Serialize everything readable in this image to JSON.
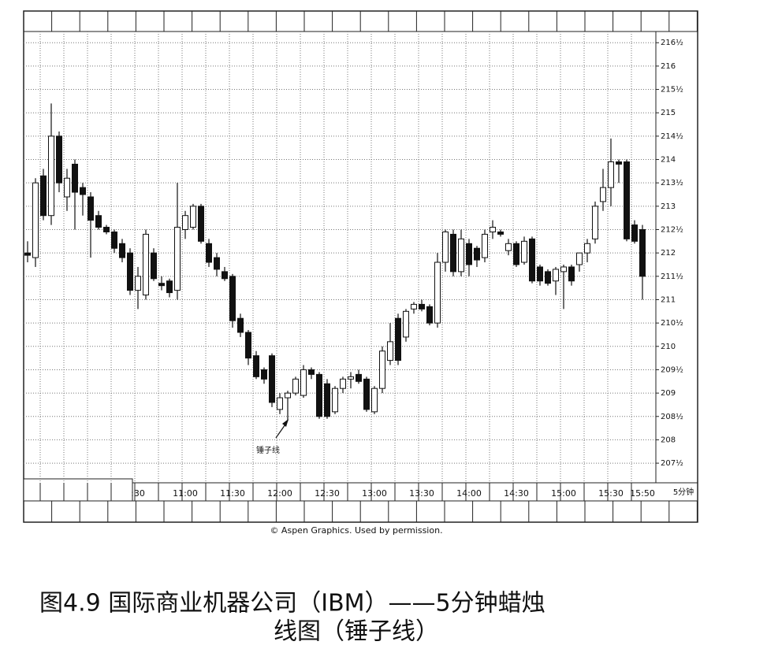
{
  "chart_data": {
    "type": "candlestick",
    "categories": [
      null,
      null,
      null,
      null,
      null,
      null,
      null,
      null,
      null,
      null,
      null,
      null,
      null,
      null,
      ":30",
      null,
      null,
      null,
      null,
      null,
      "11:00",
      null,
      null,
      null,
      null,
      null,
      "11:30",
      null,
      null,
      null,
      null,
      null,
      "12:00",
      null,
      null,
      null,
      null,
      null,
      "12:30",
      null,
      null,
      null,
      null,
      null,
      "13:00",
      null,
      null,
      null,
      null,
      null,
      "13:30",
      null,
      null,
      null,
      null,
      null,
      "14:00",
      null,
      null,
      null,
      null,
      null,
      "14:30",
      null,
      null,
      null,
      null,
      null,
      "15:00",
      null,
      null,
      null,
      null,
      null,
      "15:30",
      null,
      null,
      null,
      "15:50"
    ],
    "open": [
      212.0,
      211.9,
      213.65,
      212.8,
      214.5,
      213.2,
      213.9,
      213.4,
      213.2,
      212.8,
      212.55,
      212.45,
      212.2,
      212.0,
      211.2,
      211.1,
      212.0,
      211.35,
      211.4,
      211.2,
      212.5,
      212.55,
      213.0,
      212.2,
      211.9,
      211.6,
      211.5,
      210.6,
      210.3,
      209.8,
      209.5,
      209.8,
      208.65,
      208.9,
      209.0,
      208.95,
      209.5,
      209.4,
      209.2,
      208.6,
      209.1,
      209.3,
      209.4,
      209.3,
      208.6,
      209.1,
      209.7,
      210.6,
      210.2,
      210.8,
      210.9,
      210.85,
      210.5,
      211.8,
      212.4,
      211.6,
      212.2,
      212.1,
      211.9,
      212.45,
      212.45,
      212.05,
      212.2,
      211.8,
      212.3,
      211.7,
      211.6,
      211.4,
      211.6,
      211.7,
      211.75,
      212.0,
      212.3,
      213.1,
      213.4,
      213.95,
      213.95,
      212.6,
      212.5
    ],
    "high": [
      212.25,
      213.6,
      213.8,
      215.2,
      214.6,
      213.8,
      214.0,
      213.5,
      213.3,
      212.9,
      212.6,
      212.5,
      212.3,
      212.1,
      211.7,
      212.5,
      212.1,
      211.5,
      211.45,
      213.5,
      212.9,
      213.05,
      213.05,
      212.3,
      212.0,
      211.7,
      211.55,
      210.7,
      210.35,
      209.9,
      209.55,
      209.85,
      209.0,
      209.05,
      209.35,
      209.6,
      209.55,
      209.45,
      209.3,
      209.15,
      209.35,
      209.45,
      209.5,
      209.35,
      209.15,
      210.0,
      210.5,
      210.7,
      210.8,
      210.95,
      211.0,
      210.9,
      212.0,
      212.5,
      212.5,
      212.5,
      212.3,
      212.15,
      212.5,
      212.7,
      212.5,
      212.3,
      212.25,
      212.35,
      212.35,
      211.75,
      211.65,
      211.7,
      211.75,
      211.75,
      212.0,
      212.3,
      213.1,
      213.8,
      214.45,
      214.0,
      214.0,
      212.7,
      212.6
    ],
    "low": [
      211.8,
      211.7,
      212.7,
      212.6,
      213.3,
      212.9,
      212.5,
      212.8,
      211.9,
      212.5,
      212.4,
      212.0,
      211.8,
      211.1,
      210.8,
      211.0,
      211.4,
      211.2,
      211.05,
      211.0,
      212.3,
      212.5,
      212.2,
      211.7,
      211.5,
      211.4,
      210.4,
      210.2,
      209.6,
      209.3,
      209.2,
      208.7,
      208.55,
      208.4,
      208.95,
      208.9,
      209.3,
      208.45,
      208.45,
      208.55,
      209.0,
      209.1,
      209.2,
      208.6,
      208.55,
      209.0,
      209.6,
      209.6,
      210.1,
      210.7,
      210.75,
      210.45,
      210.4,
      211.6,
      211.5,
      211.5,
      211.5,
      211.7,
      211.8,
      212.3,
      212.35,
      211.95,
      211.7,
      211.75,
      211.35,
      211.3,
      211.3,
      211.1,
      210.8,
      211.3,
      211.6,
      211.8,
      212.2,
      212.9,
      213.0,
      213.5,
      212.25,
      212.2,
      211.0
    ],
    "close": [
      211.95,
      213.5,
      212.8,
      214.5,
      213.5,
      213.6,
      213.3,
      213.25,
      212.7,
      212.55,
      212.45,
      212.1,
      211.9,
      211.2,
      211.5,
      212.4,
      211.45,
      211.3,
      211.15,
      212.55,
      212.8,
      213.0,
      212.25,
      211.8,
      211.65,
      211.45,
      210.55,
      210.3,
      209.75,
      209.35,
      209.3,
      208.8,
      208.9,
      209.0,
      209.3,
      209.5,
      209.4,
      208.5,
      208.5,
      209.1,
      209.3,
      209.35,
      209.25,
      208.65,
      209.1,
      209.9,
      210.1,
      209.7,
      210.75,
      210.9,
      210.8,
      210.5,
      211.8,
      212.45,
      211.6,
      212.3,
      211.75,
      211.85,
      212.4,
      212.55,
      212.4,
      212.2,
      211.75,
      212.25,
      211.4,
      211.4,
      211.35,
      211.65,
      211.7,
      211.4,
      212.0,
      212.2,
      213.0,
      213.4,
      213.95,
      213.9,
      212.3,
      212.25,
      211.5
    ],
    "ylim": [
      207.08,
      216.74
    ],
    "yticks": [
      {
        "value": 216.5,
        "label": "216½"
      },
      216,
      {
        "value": 215.5,
        "label": "215½"
      },
      215,
      {
        "value": 214.5,
        "label": "214½"
      },
      214,
      {
        "value": 213.5,
        "label": "213½"
      },
      213,
      {
        "value": 212.5,
        "label": "212½"
      },
      212,
      {
        "value": 211.5,
        "label": "211½"
      },
      211,
      {
        "value": 210.5,
        "label": "210½"
      },
      210,
      {
        "value": 209.5,
        "label": "209½"
      },
      209,
      {
        "value": 208.5,
        "label": "208½"
      },
      208,
      {
        "value": 207.5,
        "label": "207½"
      }
    ],
    "x_label": "5分钟",
    "annotation": "锤子线",
    "grid": true
  },
  "credit": "© Aspen Graphics. Used by permission.",
  "caption": [
    "图4.9 国际商业机器公司（IBM）——5分钟蜡烛",
    "线图（锤子线）"
  ]
}
